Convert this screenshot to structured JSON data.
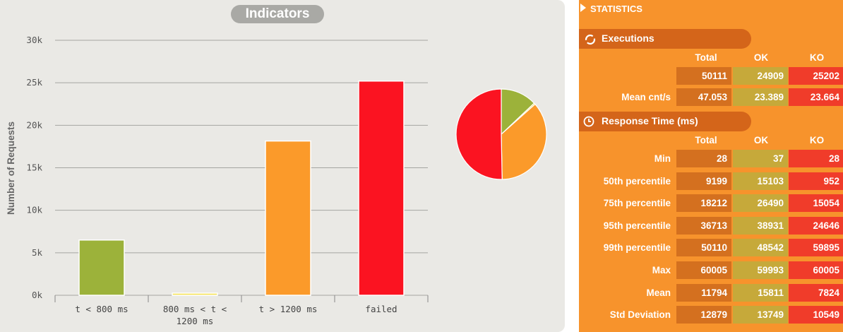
{
  "chart_data": {
    "type": "bar",
    "title": "Indicators",
    "ylabel": "Number of Requests",
    "ylim": [
      0,
      30000
    ],
    "y_ticks": [
      "0k",
      "5k",
      "10k",
      "15k",
      "20k",
      "25k",
      "30k"
    ],
    "categories": [
      [
        "t < 800 ms"
      ],
      [
        "800 ms < t <",
        "1200 ms"
      ],
      [
        "t > 1200 ms"
      ],
      [
        "failed"
      ]
    ],
    "values": [
      6500,
      250,
      18150,
      25202
    ],
    "colors": [
      "#9cb23a",
      "#f4e04d",
      "#fb9a2a",
      "#fb1321"
    ],
    "grid": true,
    "pie": {
      "values": [
        6500,
        250,
        18150,
        25202
      ],
      "colors": [
        "#9cb23a",
        "#f4e04d",
        "#fb9a2a",
        "#fb1321"
      ]
    }
  },
  "stats": {
    "header": "STATISTICS",
    "executions": {
      "title": "Executions",
      "columns": [
        "Total",
        "OK",
        "KO"
      ],
      "rows": [
        {
          "label": "",
          "values": [
            "50111",
            "24909",
            "25202"
          ]
        },
        {
          "label": "Mean cnt/s",
          "values": [
            "47.053",
            "23.389",
            "23.664"
          ]
        }
      ]
    },
    "response_time": {
      "title": "Response Time (ms)",
      "columns": [
        "Total",
        "OK",
        "KO"
      ],
      "rows": [
        {
          "label": "Min",
          "values": [
            "28",
            "37",
            "28"
          ]
        },
        {
          "label": "50th percentile",
          "values": [
            "9199",
            "15103",
            "952"
          ]
        },
        {
          "label": "75th percentile",
          "values": [
            "18212",
            "26490",
            "15054"
          ]
        },
        {
          "label": "95th percentile",
          "values": [
            "36713",
            "38931",
            "24646"
          ]
        },
        {
          "label": "99th percentile",
          "values": [
            "50110",
            "48542",
            "59895"
          ]
        },
        {
          "label": "Max",
          "values": [
            "60005",
            "59993",
            "60005"
          ]
        },
        {
          "label": "Mean",
          "values": [
            "11794",
            "15811",
            "7824"
          ]
        },
        {
          "label": "Std Deviation",
          "values": [
            "12879",
            "13749",
            "10549"
          ]
        }
      ]
    }
  }
}
